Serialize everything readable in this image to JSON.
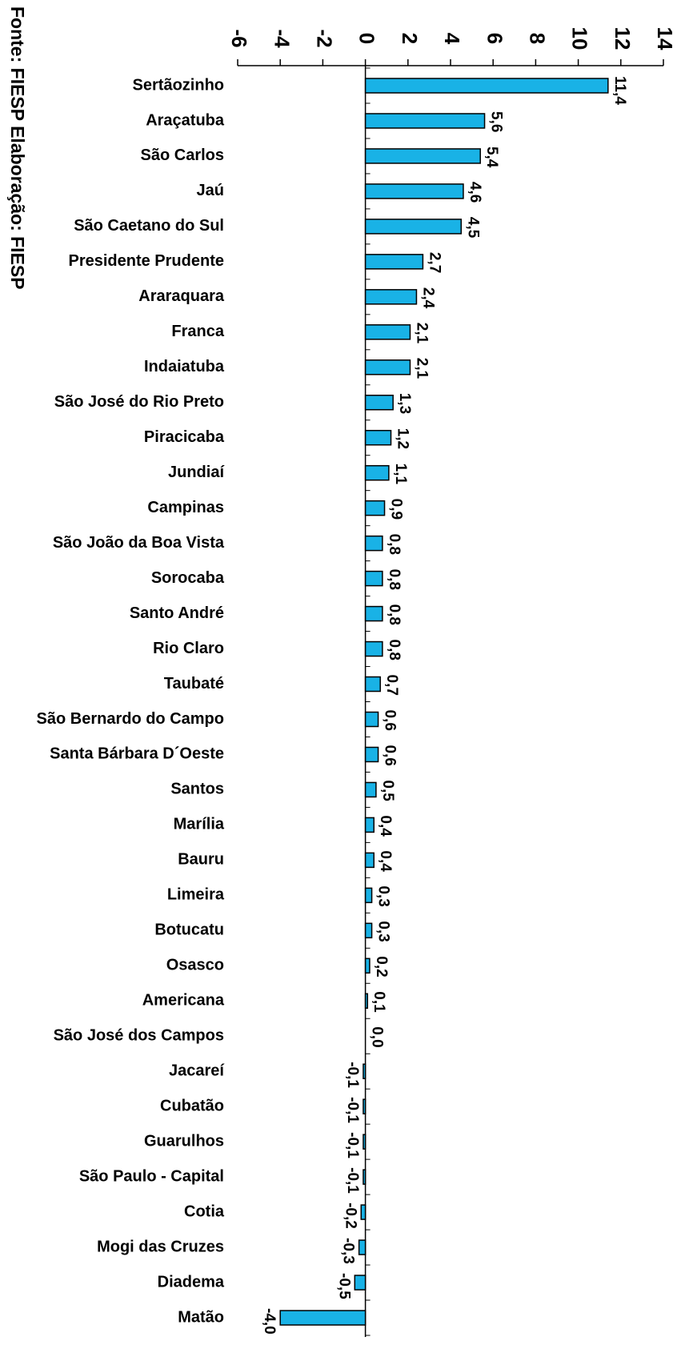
{
  "chart_data": {
    "type": "bar",
    "orientation": "horizontal",
    "source": "Fonte: FIESP  Elaboração: FIESP",
    "categories": [
      "Sertãozinho",
      "Araçatuba",
      "São Carlos",
      "Jaú",
      "São Caetano do Sul",
      "Presidente Prudente",
      "Araraquara",
      "Franca",
      "Indaiatuba",
      "São José do Rio Preto",
      "Piracicaba",
      "Jundiaí",
      "Campinas",
      "São João da Boa Vista",
      "Sorocaba",
      "Santo André",
      "Rio Claro",
      "Taubaté",
      "São Bernardo do Campo",
      "Santa Bárbara D´Oeste",
      "Santos",
      "Marília",
      "Bauru",
      "Limeira",
      "Botucatu",
      "Osasco",
      "Americana",
      "São José dos Campos",
      "Jacareí",
      "Cubatão",
      "Guarulhos",
      "São Paulo - Capital",
      "Cotia",
      "Mogi das Cruzes",
      "Diadema",
      "Matão"
    ],
    "values": [
      11.4,
      5.6,
      5.4,
      4.6,
      4.5,
      2.7,
      2.4,
      2.1,
      2.1,
      1.3,
      1.2,
      1.1,
      0.9,
      0.8,
      0.8,
      0.8,
      0.8,
      0.7,
      0.6,
      0.6,
      0.5,
      0.4,
      0.4,
      0.3,
      0.3,
      0.2,
      0.1,
      0.0,
      -0.1,
      -0.1,
      -0.1,
      -0.1,
      -0.2,
      -0.3,
      -0.5,
      -4.0
    ],
    "value_labels": [
      "11,4",
      "5,6",
      "5,4",
      "4,6",
      "4,5",
      "2,7",
      "2,4",
      "2,1",
      "2,1",
      "1,3",
      "1,2",
      "1,1",
      "0,9",
      "0,8",
      "0,8",
      "0,8",
      "0,8",
      "0,7",
      "0,6",
      "0,6",
      "0,5",
      "0,4",
      "0,4",
      "0,3",
      "0,3",
      "0,2",
      "0,1",
      "0,0",
      "-0,1",
      "-0,1",
      "-0,1",
      "-0,1",
      "-0,2",
      "-0,3",
      "-0,5",
      "-4,0"
    ],
    "color": "#19b2e6",
    "xlim": [
      -6,
      14
    ],
    "xticks": [
      -6,
      -4,
      -2,
      0,
      2,
      4,
      6,
      8,
      10,
      12,
      14
    ]
  }
}
